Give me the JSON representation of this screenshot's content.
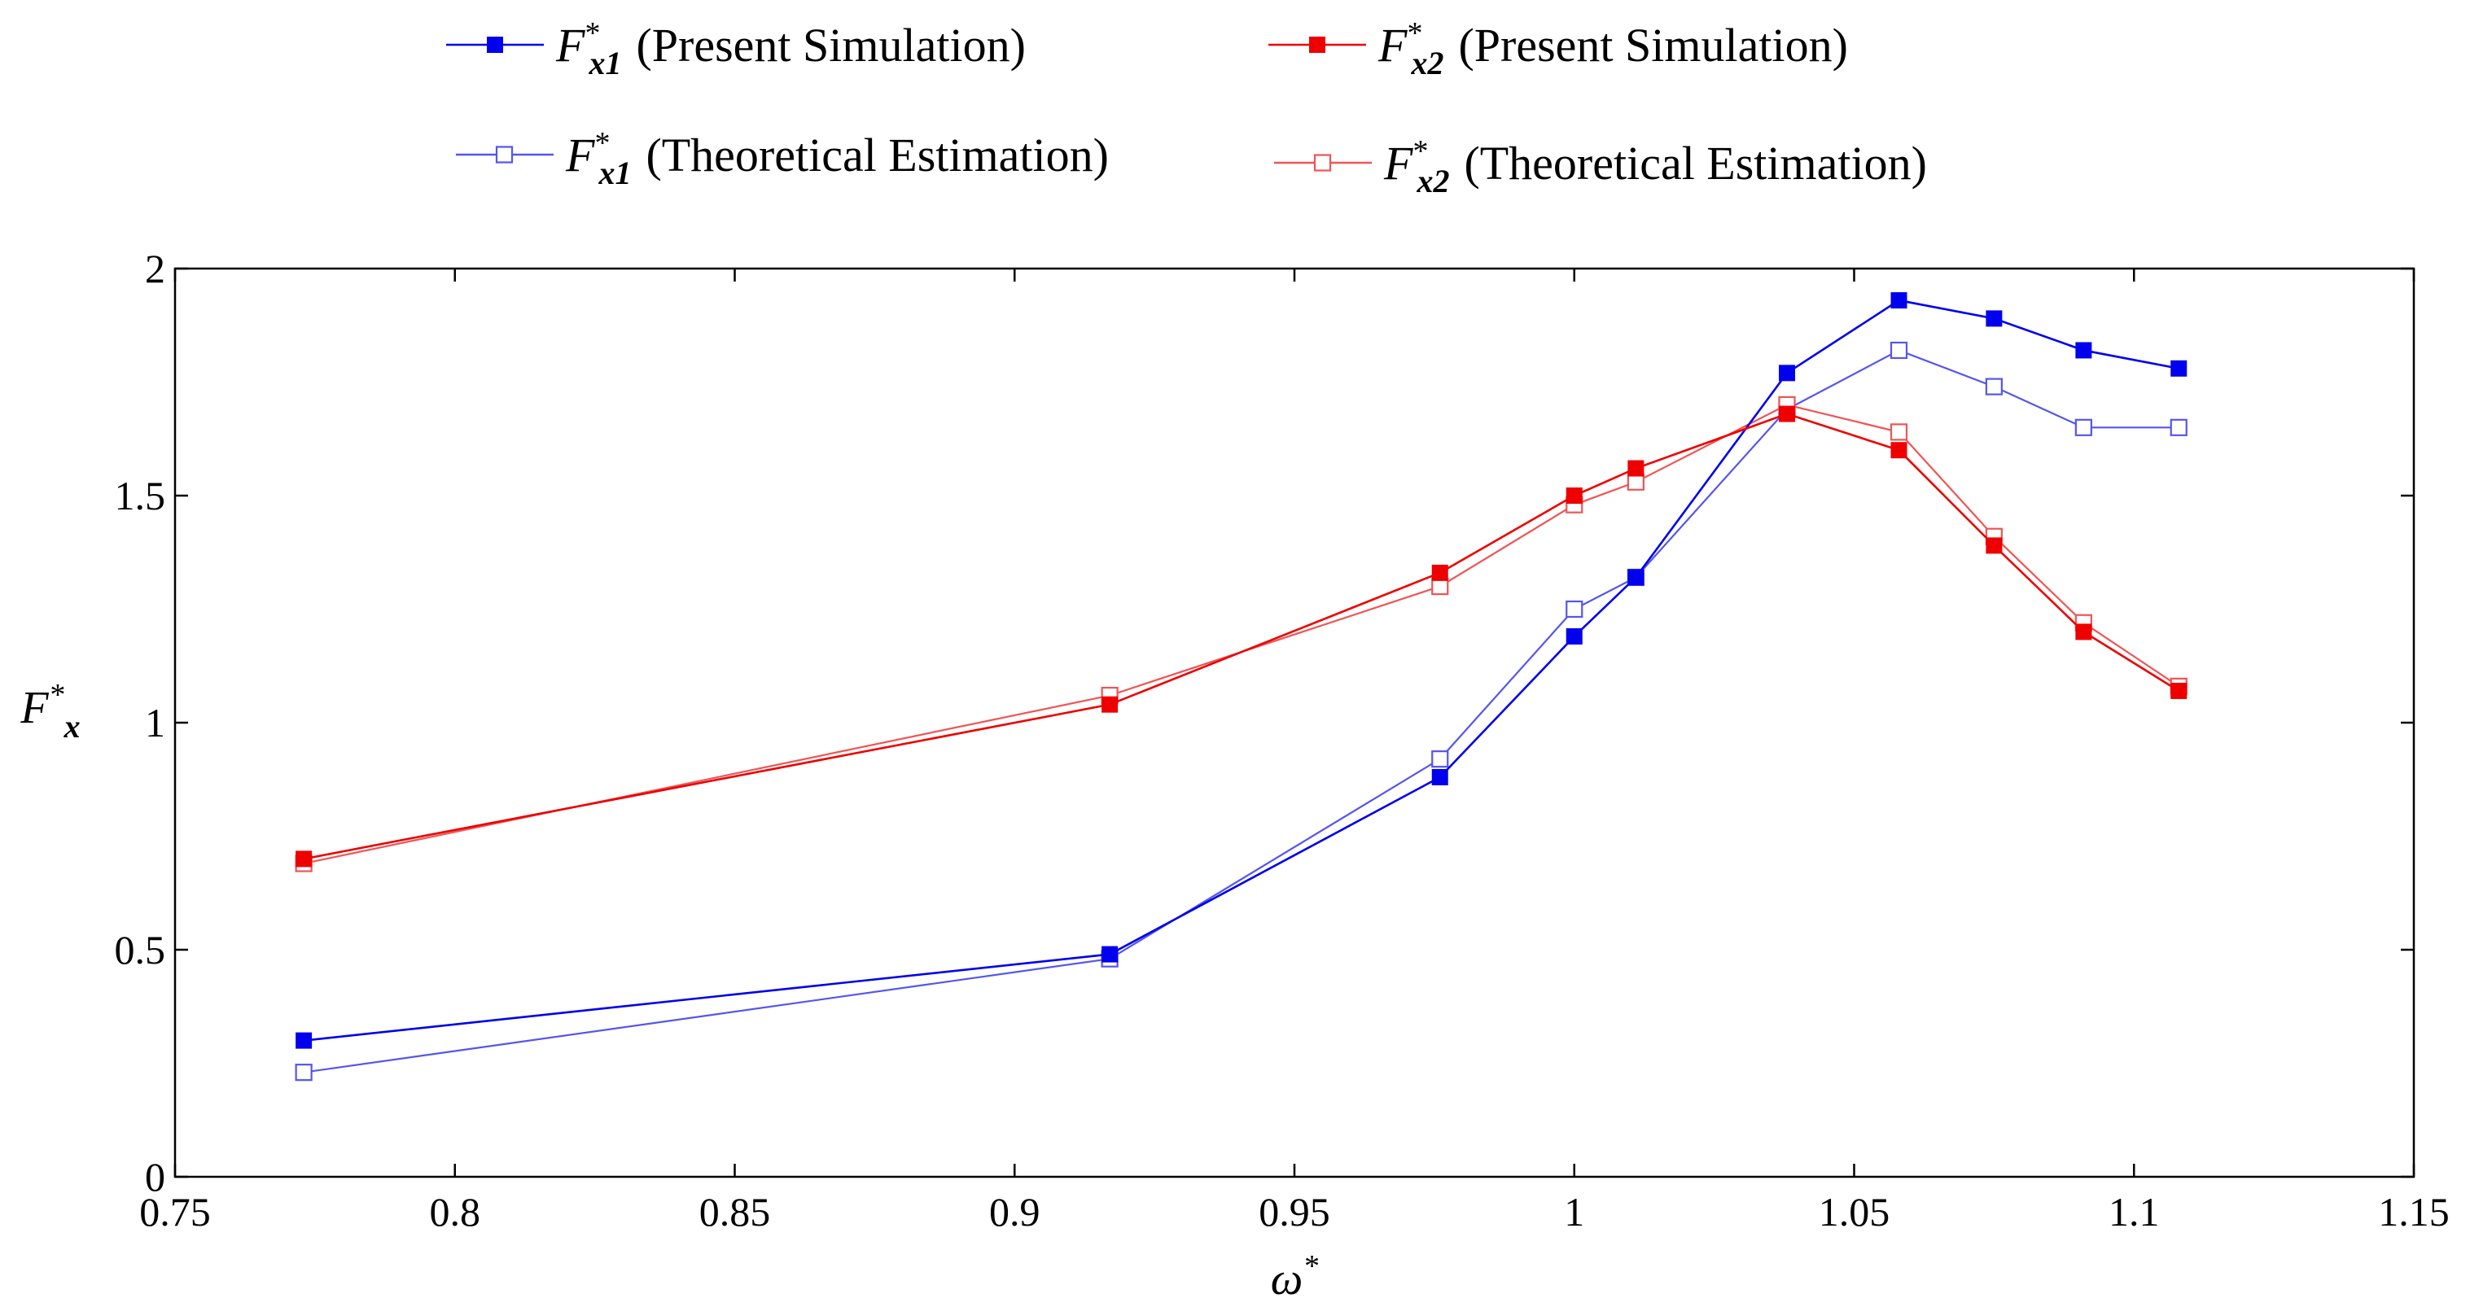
{
  "chart_data": {
    "type": "line",
    "xlabel": "ω*",
    "ylabel": "F*x",
    "xlim": [
      0.75,
      1.15
    ],
    "ylim": [
      0,
      2
    ],
    "xticks": [
      "0.75",
      "0.8",
      "0.85",
      "0.9",
      "0.95",
      "1",
      "1.05",
      "1.1",
      "1.15"
    ],
    "xtick_values": [
      0.75,
      0.8,
      0.85,
      0.9,
      0.95,
      1.0,
      1.05,
      1.1,
      1.15
    ],
    "yticks": [
      "0",
      "0.5",
      "1",
      "1.5",
      "2"
    ],
    "ytick_values": [
      0,
      0.5,
      1,
      1.5,
      2
    ],
    "legend_position": "top",
    "x": [
      0.773,
      0.917,
      0.976,
      1.0,
      1.011,
      1.038,
      1.058,
      1.075,
      1.091,
      1.108
    ],
    "series": [
      {
        "name": "Fx1 Present Simulation",
        "label_main": "F",
        "label_sup": "*",
        "label_sub": "x1",
        "label_text": "(Present Simulation)",
        "color": "#0000ee",
        "marker": "filled-square",
        "values": [
          0.3,
          0.49,
          0.88,
          1.19,
          1.32,
          1.77,
          1.93,
          1.89,
          1.82,
          1.78
        ]
      },
      {
        "name": "Fx2 Present Simulation",
        "label_main": "F",
        "label_sup": "*",
        "label_sub": "x2",
        "label_text": "(Present Simulation)",
        "color": "#ee0000",
        "marker": "filled-square",
        "values": [
          0.7,
          1.04,
          1.33,
          1.5,
          1.56,
          1.68,
          1.6,
          1.39,
          1.2,
          1.07
        ]
      },
      {
        "name": "Fx1 Theoretical Estimation",
        "label_main": "F",
        "label_sup": "*",
        "label_sub": "x1",
        "label_text": "(Theoretical Estimation)",
        "color": "#5555ee",
        "marker": "open-square",
        "values": [
          0.23,
          0.48,
          0.92,
          1.25,
          1.32,
          1.69,
          1.82,
          1.74,
          1.65,
          1.65
        ]
      },
      {
        "name": "Fx2 Theoretical Estimation",
        "label_main": "F",
        "label_sup": "*",
        "label_sub": "x2",
        "label_text": "(Theoretical Estimation)",
        "color": "#ee5555",
        "marker": "open-square",
        "values": [
          0.69,
          1.06,
          1.3,
          1.48,
          1.53,
          1.7,
          1.64,
          1.41,
          1.22,
          1.08
        ]
      }
    ]
  }
}
